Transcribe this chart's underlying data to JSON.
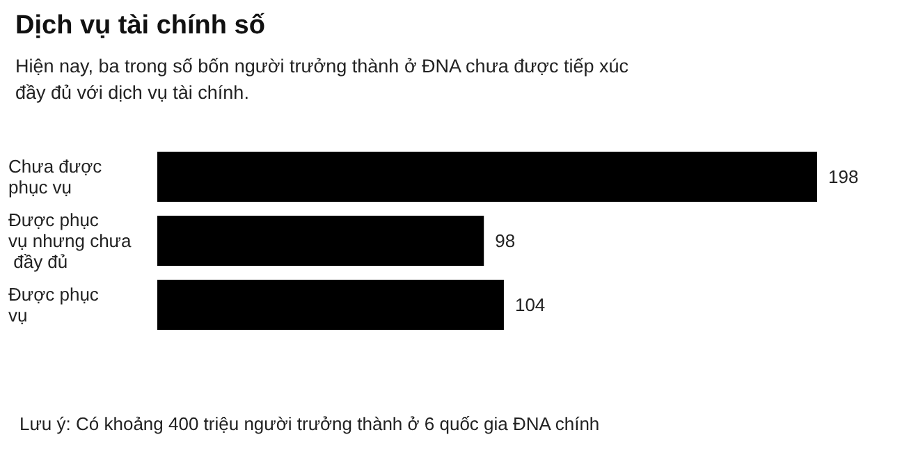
{
  "chart_data": {
    "type": "bar",
    "orientation": "horizontal",
    "title": "Dịch vụ tài chính số",
    "subtitle": "Hiện nay, ba trong số bốn người trưởng thành ở ĐNA chưa được tiếp xúc đầy đủ với dịch vụ tài chính.",
    "categories": [
      "Chưa được phục vụ",
      "Được phục vụ nhưng chưa đầy đủ",
      "Được phục vụ"
    ],
    "values": [
      198,
      98,
      104
    ],
    "color": "#000000",
    "data_labels": true,
    "annotations": [
      "Lưu ý: Có khoảng 400 triệu người trưởng thành ở 6 quốc gia ĐNA chính"
    ]
  }
}
